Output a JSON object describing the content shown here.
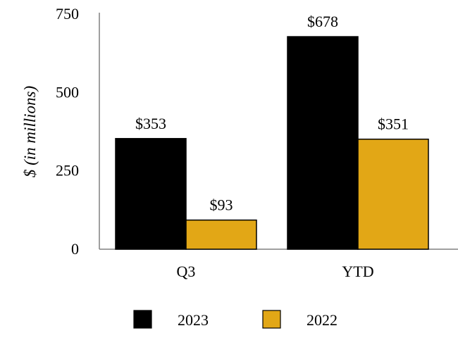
{
  "chart_data": {
    "type": "bar",
    "title": "",
    "xlabel": "",
    "ylabel": "$ (in millions)",
    "ylim": [
      0,
      750
    ],
    "yticks": [
      0,
      250,
      500,
      750
    ],
    "categories": [
      "Q3",
      "YTD"
    ],
    "series": [
      {
        "name": "2023",
        "color": "#000000",
        "values": [
          353,
          678
        ],
        "labels": [
          "$353",
          "$678"
        ]
      },
      {
        "name": "2022",
        "color": "#E2A716",
        "values": [
          93,
          351
        ],
        "labels": [
          "$93",
          "$351"
        ]
      }
    ],
    "grid": false,
    "legend_position": "bottom-center"
  }
}
